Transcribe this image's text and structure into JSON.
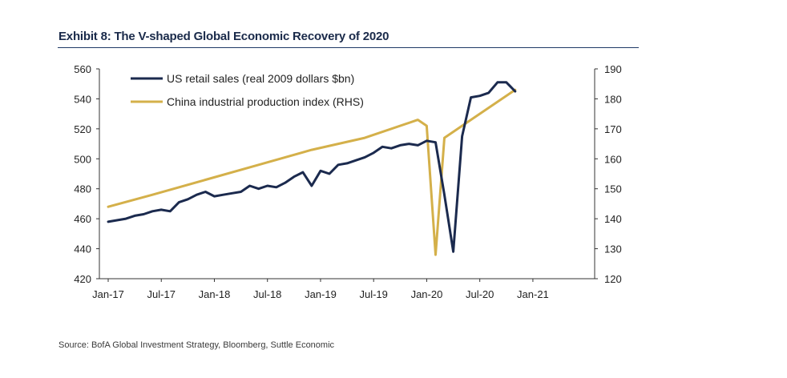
{
  "title": "Exhibit 8: The V-shaped Global Economic Recovery of 2020",
  "source": "Source: BofA Global Investment Strategy, Bloomberg, Suttle Economic",
  "chart_data": {
    "type": "line",
    "title": "Exhibit 8: The V-shaped Global Economic Recovery of 2020",
    "x_tick_labels": [
      "Jan-17",
      "Jul-17",
      "Jan-18",
      "Jul-18",
      "Jan-19",
      "Jul-19",
      "Jan-20",
      "Jul-20",
      "Jan-21"
    ],
    "y_left": {
      "lim": [
        420,
        560
      ],
      "ticks": [
        420,
        440,
        460,
        480,
        500,
        520,
        540,
        560
      ]
    },
    "y_right": {
      "lim": [
        120,
        190
      ],
      "ticks": [
        120,
        130,
        140,
        150,
        160,
        170,
        180,
        190
      ]
    },
    "legend_position": "top-left",
    "grid": false,
    "series": [
      {
        "name": "US retail sales (real 2009 dollars $bn)",
        "axis": "left",
        "color": "#1b2a4e",
        "x": [
          "2017-01",
          "2017-02",
          "2017-03",
          "2017-04",
          "2017-05",
          "2017-06",
          "2017-07",
          "2017-08",
          "2017-09",
          "2017-10",
          "2017-11",
          "2017-12",
          "2018-01",
          "2018-02",
          "2018-03",
          "2018-04",
          "2018-05",
          "2018-06",
          "2018-07",
          "2018-08",
          "2018-09",
          "2018-10",
          "2018-11",
          "2018-12",
          "2019-01",
          "2019-02",
          "2019-03",
          "2019-04",
          "2019-05",
          "2019-06",
          "2019-07",
          "2019-08",
          "2019-09",
          "2019-10",
          "2019-11",
          "2019-12",
          "2020-01",
          "2020-02",
          "2020-03",
          "2020-04",
          "2020-05",
          "2020-06",
          "2020-07",
          "2020-08",
          "2020-09",
          "2020-10",
          "2020-11"
        ],
        "values": [
          458,
          459,
          460,
          462,
          463,
          465,
          466,
          465,
          471,
          473,
          476,
          478,
          475,
          476,
          477,
          478,
          482,
          480,
          482,
          481,
          484,
          488,
          491,
          482,
          492,
          490,
          496,
          497,
          499,
          501,
          504,
          508,
          507,
          509,
          510,
          509,
          512,
          511,
          476,
          438,
          515,
          541,
          542,
          544,
          551,
          551,
          545
        ]
      },
      {
        "name": "China industrial production index (RHS)",
        "axis": "right",
        "color": "#d4b04a",
        "x": [
          "2017-01",
          "2017-06",
          "2017-12",
          "2018-06",
          "2018-12",
          "2019-06",
          "2019-12",
          "2020-01",
          "2020-02",
          "2020-03",
          "2020-06",
          "2020-11"
        ],
        "values": [
          144,
          148,
          153,
          158,
          163,
          167,
          173,
          171,
          128,
          167,
          173,
          183
        ]
      }
    ]
  }
}
